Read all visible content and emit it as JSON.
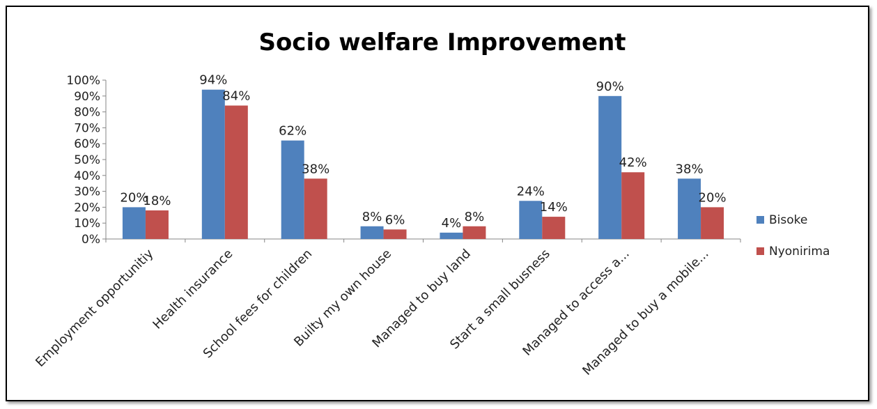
{
  "chart_data": {
    "type": "bar",
    "title": "Socio welfare Improvement",
    "xlabel": "",
    "ylabel": "",
    "ylim": [
      0,
      1
    ],
    "yticks": [
      "0%",
      "10%",
      "20%",
      "30%",
      "40%",
      "50%",
      "60%",
      "70%",
      "80%",
      "90%",
      "100%"
    ],
    "categories": [
      "Employment opportunitiy",
      "Health insurance",
      "School fees for children",
      "Builty my own house",
      "Managed to buy land",
      "Start a small busness",
      "Managed to access a...",
      "Managed to buy a mobile..."
    ],
    "series": [
      {
        "name": "Bisoke",
        "color": "#4F81BD",
        "values": [
          0.2,
          0.94,
          0.62,
          0.08,
          0.04,
          0.24,
          0.9,
          0.38
        ],
        "labels": [
          "20%",
          "94%",
          "62%",
          "8%",
          "4%",
          "24%",
          "90%",
          "38%"
        ]
      },
      {
        "name": "Nyonirima",
        "color": "#C0504D",
        "values": [
          0.18,
          0.84,
          0.38,
          0.06,
          0.08,
          0.14,
          0.42,
          0.2
        ],
        "labels": [
          "18%",
          "84%",
          "38%",
          "6%",
          "8%",
          "14%",
          "42%",
          "20%"
        ]
      }
    ],
    "legend_position": "right",
    "grid": false
  }
}
